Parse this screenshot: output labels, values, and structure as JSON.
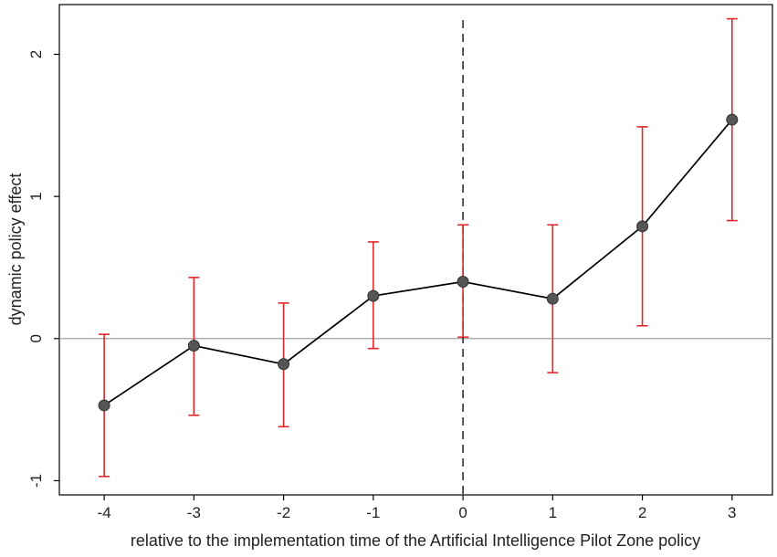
{
  "chart_data": {
    "type": "scatter",
    "title": "",
    "xlabel": "relative to the implementation time of the Artificial Intelligence Pilot Zone policy",
    "ylabel": "dynamic policy effect",
    "x": [
      -4,
      -3,
      -2,
      -1,
      0,
      1,
      2,
      3
    ],
    "x_tick_labels": [
      "-4",
      "-3",
      "-2",
      "-1",
      "0",
      "1",
      "2",
      "3"
    ],
    "y_ticks": [
      -1,
      0,
      1,
      2
    ],
    "y_tick_labels": [
      "-1",
      "0",
      "1",
      "2"
    ],
    "xlim": [
      -4.5,
      3.45
    ],
    "ylim": [
      -1.1,
      2.35
    ],
    "series": [
      {
        "estimate": [
          -0.47,
          -0.05,
          -0.18,
          0.3,
          0.4,
          0.28,
          0.79,
          1.54
        ],
        "ci_lower": [
          -0.97,
          -0.54,
          -0.62,
          -0.07,
          0.01,
          -0.24,
          0.09,
          0.83
        ],
        "ci_upper": [
          0.03,
          0.43,
          0.25,
          0.68,
          0.8,
          0.8,
          1.49,
          2.25
        ]
      }
    ],
    "reference_lines": {
      "horizontal_y": 0,
      "vertical_x": 0
    },
    "grid": false,
    "legend": "none",
    "colors": {
      "line": "#000000",
      "marker": "#555555",
      "ci": "#e0282a",
      "zero_line": "#a0a0a0",
      "vline": "#111111"
    }
  }
}
